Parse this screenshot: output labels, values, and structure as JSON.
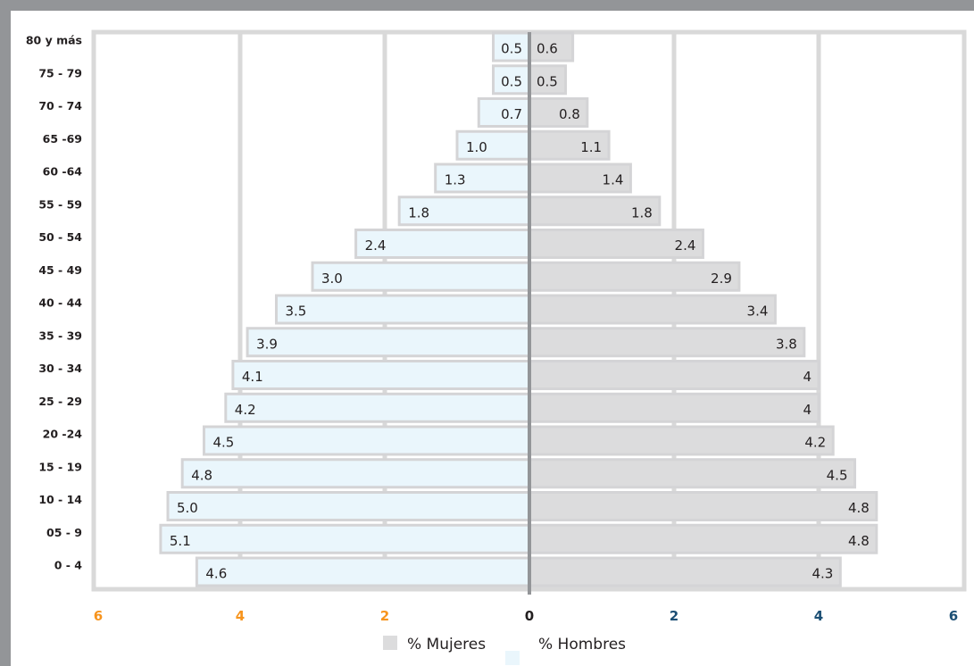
{
  "chart_data": {
    "type": "bar",
    "orientation": "horizontal-population-pyramid",
    "categories": [
      "80 y más",
      "75 - 79",
      "70 - 74",
      "65 -69",
      "60 -64",
      "55 - 59",
      "50 - 54",
      "45 - 49",
      "40 - 44",
      "35 - 39",
      "30 - 34",
      "25 - 29",
      "20 -24",
      "15 - 19",
      "10 - 14",
      "05 - 9",
      "0 - 4"
    ],
    "series": [
      {
        "name": "% Hombres",
        "side": "left",
        "values": [
          0.5,
          0.5,
          0.7,
          1.0,
          1.3,
          1.8,
          2.4,
          3.0,
          3.5,
          3.9,
          4.1,
          4.2,
          4.5,
          4.8,
          5.0,
          5.1,
          4.6
        ],
        "labels": [
          "0.5",
          "0.5",
          "0.7",
          "1.0",
          "1.3",
          "1.8",
          "2.4",
          "3.0",
          "3.5",
          "3.9",
          "4.1",
          "4.2",
          "4.5",
          "4.8",
          "5.0",
          "5.1",
          "4.6"
        ]
      },
      {
        "name": "% Mujeres",
        "side": "right",
        "values": [
          0.6,
          0.5,
          0.8,
          1.1,
          1.4,
          1.8,
          2.4,
          2.9,
          3.4,
          3.8,
          4,
          4,
          4.2,
          4.5,
          4.8,
          4.8,
          4.3
        ],
        "labels": [
          "0.6",
          "0.5",
          "0.8",
          "1.1",
          "1.4",
          "1.8",
          "2.4",
          "2.9",
          "3.4",
          "3.8",
          "4",
          "4",
          "4.2",
          "4.5",
          "4.8",
          "4.8",
          "4.3"
        ]
      }
    ],
    "xlim": [
      -6,
      6
    ],
    "ticks": [
      {
        "value": -6,
        "label": "6"
      },
      {
        "value": -4,
        "label": "4"
      },
      {
        "value": -2,
        "label": "2"
      },
      {
        "value": 0,
        "label": "0"
      },
      {
        "value": 2,
        "label": "2"
      },
      {
        "value": 4,
        "label": "4"
      },
      {
        "value": 6,
        "label": "6"
      }
    ],
    "grid": true,
    "legend_position": "bottom",
    "legend": [
      {
        "label": "% Mujeres",
        "series": "% Mujeres"
      },
      {
        "label": "% Hombres",
        "series": "% Hombres"
      }
    ],
    "colors": {
      "hombres_fill": "#eaf6fc",
      "mujeres_fill": "#dcdcdd",
      "bar_border": "#d4d4d6",
      "grid": "#d9d9d9",
      "center_line": "#939598",
      "tick_left": "#f7941d",
      "tick_right": "#1c4f74",
      "tick_zero": "#231f20",
      "frame": "#939598"
    }
  }
}
